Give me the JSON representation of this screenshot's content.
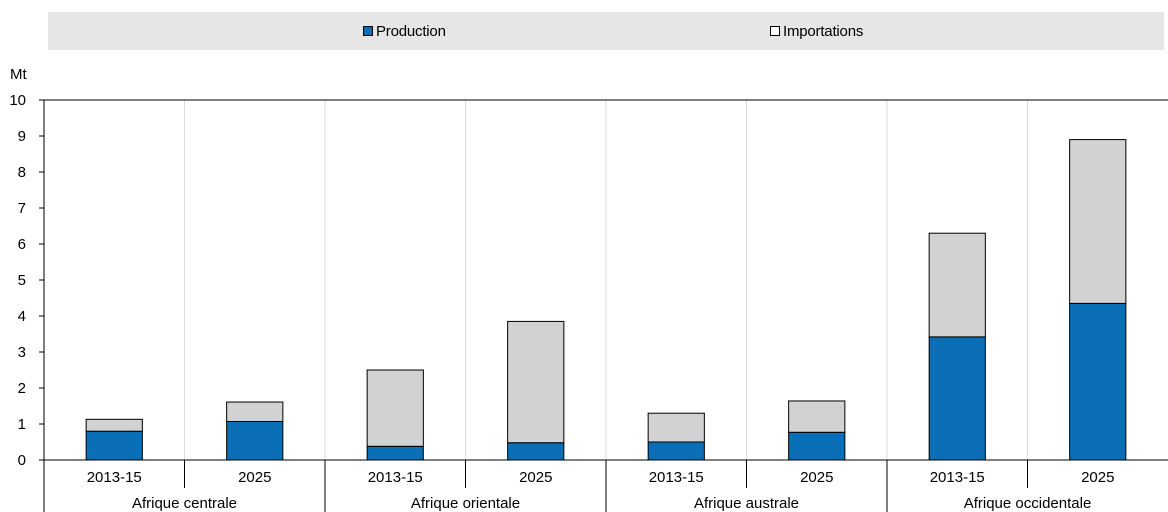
{
  "chart_data": {
    "type": "bar",
    "stacked": true,
    "ylabel": "Mt",
    "ylim": [
      0,
      10
    ],
    "yticks": [
      "0",
      "1",
      "2",
      "3",
      "4",
      "5",
      "6",
      "7",
      "8",
      "9",
      "10"
    ],
    "groups": [
      {
        "label": "Afrique centrale",
        "categories": [
          "2013-15",
          "2025"
        ]
      },
      {
        "label": "Afrique orientale",
        "categories": [
          "2013-15",
          "2025"
        ]
      },
      {
        "label": "Afrique australe",
        "categories": [
          "2013-15",
          "2025"
        ]
      },
      {
        "label": "Afrique occidentale",
        "categories": [
          "2013-15",
          "2025"
        ]
      }
    ],
    "series": [
      {
        "name": "Production",
        "color": "#0a6fb7",
        "values": [
          0.8,
          1.07,
          0.38,
          0.48,
          0.5,
          0.77,
          3.42,
          4.35
        ]
      },
      {
        "name": "Importations",
        "color": "#d2d2d2",
        "values": [
          0.33,
          0.54,
          2.12,
          3.37,
          0.8,
          0.87,
          2.88,
          4.55
        ]
      }
    ],
    "legend_position": "top",
    "grid": true
  }
}
